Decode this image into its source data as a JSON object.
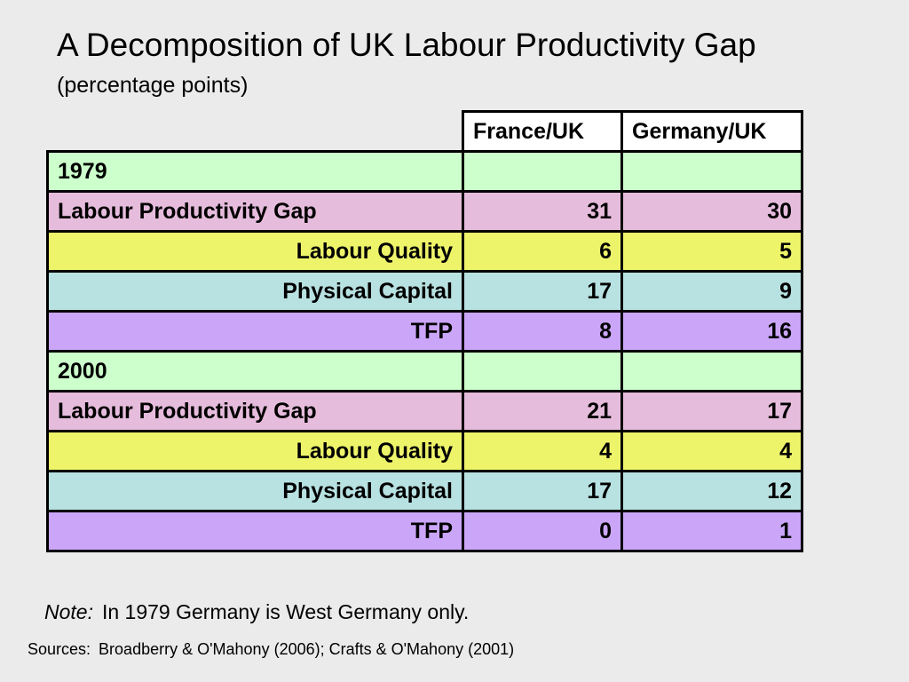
{
  "slide": {
    "title": "A Decomposition of UK Labour Productivity Gap",
    "subtitle": "(percentage points)"
  },
  "table": {
    "columns": [
      "",
      "France/UK",
      "Germany/UK"
    ],
    "rows": [
      {
        "label": "1979",
        "france_uk": "",
        "germany_uk": "",
        "align": "left",
        "color": "#ccffcc"
      },
      {
        "label": "Labour Productivity Gap",
        "france_uk": "31",
        "germany_uk": "30",
        "align": "left",
        "color": "#e6bcdc"
      },
      {
        "label": "Labour Quality",
        "france_uk": "6",
        "germany_uk": "5",
        "align": "right",
        "color": "#eef46a"
      },
      {
        "label": "Physical Capital",
        "france_uk": "17",
        "germany_uk": "9",
        "align": "right",
        "color": "#b8e1e1"
      },
      {
        "label": "TFP",
        "france_uk": "8",
        "germany_uk": "16",
        "align": "right",
        "color": "#cba6f8"
      },
      {
        "label": "2000",
        "france_uk": "",
        "germany_uk": "",
        "align": "left",
        "color": "#ccffcc"
      },
      {
        "label": "Labour Productivity Gap",
        "france_uk": "21",
        "germany_uk": "17",
        "align": "left",
        "color": "#e6bcdc"
      },
      {
        "label": "Labour Quality",
        "france_uk": "4",
        "germany_uk": "4",
        "align": "right",
        "color": "#eef46a"
      },
      {
        "label": "Physical Capital",
        "france_uk": "17",
        "germany_uk": "12",
        "align": "right",
        "color": "#b8e1e1"
      },
      {
        "label": "TFP",
        "france_uk": "0",
        "germany_uk": "1",
        "align": "right",
        "color": "#cba6f8"
      }
    ]
  },
  "note": {
    "label": "Note:",
    "text": "In 1979 Germany is West Germany only."
  },
  "sources": {
    "label": "Sources:",
    "text": "Broadberry & O'Mahony (2006); Crafts & O'Mahony (2001)"
  }
}
